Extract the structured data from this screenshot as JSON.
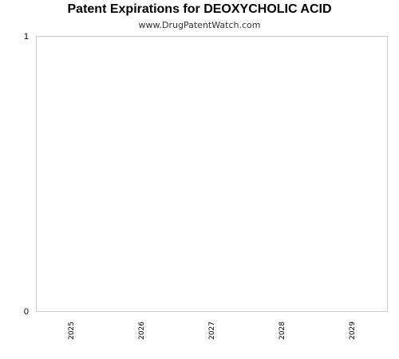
{
  "chart_data": {
    "type": "bar",
    "title": "Patent Expirations for DEOXYCHOLIC ACID",
    "subtitle": "www.DrugPatentWatch.com",
    "xlabel": "",
    "ylabel": "",
    "categories": [
      "2025",
      "2026",
      "2027",
      "2028",
      "2029"
    ],
    "values": [
      0,
      0,
      0,
      0,
      0
    ],
    "ylim": [
      0,
      1
    ],
    "yticks": [
      "0",
      "1"
    ],
    "grid": false,
    "legend": "none",
    "colors": {
      "frame": "#cccccc",
      "axis": "#cccccc",
      "bar": "#4a7ebb"
    }
  }
}
